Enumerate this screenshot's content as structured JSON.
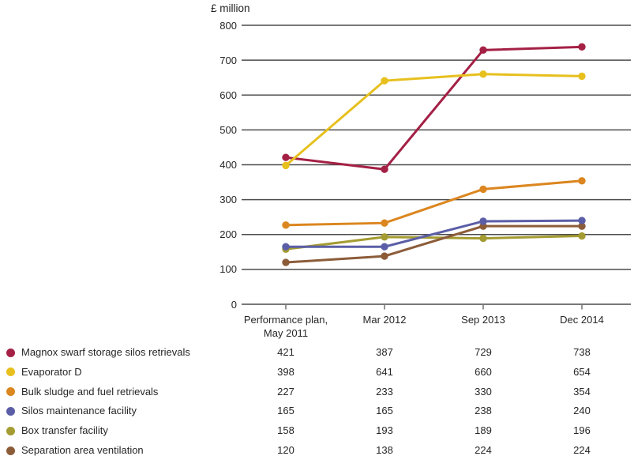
{
  "chart_data": {
    "type": "line",
    "title": "",
    "ylabel": "£ million",
    "xlabel": "",
    "ylim": [
      0,
      800
    ],
    "yticks": [
      800,
      700,
      600,
      500,
      400,
      300,
      200,
      100,
      0
    ],
    "grid": "horizontal",
    "legend_position": "bottom-left",
    "marker": "circle",
    "gridline_color": "#4c4c4c",
    "text_color": "#262626",
    "categories": [
      "Performance plan,\nMay 2011",
      "Mar 2012",
      "Sep 2013",
      "Dec 2014"
    ],
    "series": [
      {
        "name": "Magnox swarf storage silos retrievals",
        "color": "#A42045",
        "values": [
          421,
          387,
          729,
          738
        ]
      },
      {
        "name": "Evaporator D",
        "color": "#E7C01E",
        "values": [
          398,
          641,
          660,
          654
        ]
      },
      {
        "name": "Bulk sludge and fuel retrievals",
        "color": "#DB861F",
        "values": [
          227,
          233,
          330,
          354
        ]
      },
      {
        "name": "Silos maintenance facility",
        "color": "#5B5EA6",
        "values": [
          165,
          165,
          238,
          240
        ]
      },
      {
        "name": "Box transfer facility",
        "color": "#A49C32",
        "values": [
          158,
          193,
          189,
          196
        ]
      },
      {
        "name": "Separation area ventilation",
        "color": "#8C5C39",
        "values": [
          120,
          138,
          224,
          224
        ]
      }
    ]
  }
}
